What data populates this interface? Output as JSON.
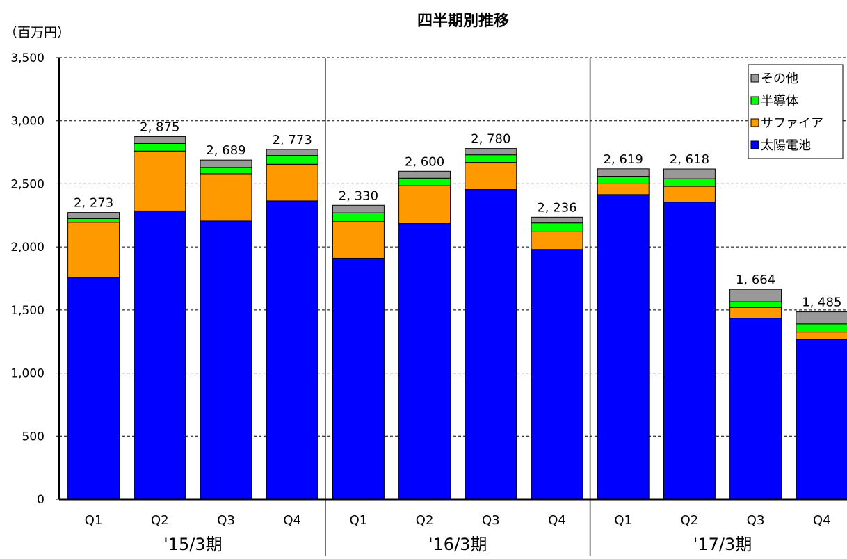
{
  "chart_data": {
    "type": "bar",
    "stacked": true,
    "title": "四半期別推移",
    "unit_label": "（百万円）",
    "ylim": [
      0,
      3500
    ],
    "yticks": [
      0,
      500,
      1000,
      1500,
      2000,
      2500,
      3000,
      3500
    ],
    "ytick_labels": [
      "0",
      "500",
      "1,000",
      "1,500",
      "2,000",
      "2,500",
      "3,000",
      "3,500"
    ],
    "grid": true,
    "legend_position": "top-right",
    "groups": [
      "'15/3期",
      "'16/3期",
      "'17/3期"
    ],
    "categories": [
      "Q1",
      "Q2",
      "Q3",
      "Q4",
      "Q1",
      "Q2",
      "Q3",
      "Q4",
      "Q1",
      "Q2",
      "Q3",
      "Q4"
    ],
    "series": [
      {
        "name": "太陽電池",
        "color": "#0000ff",
        "values": [
          1755,
          2285,
          2205,
          2365,
          1910,
          2185,
          2455,
          1980,
          2415,
          2355,
          1435,
          1265
        ]
      },
      {
        "name": "サファイア",
        "color": "#ff9900",
        "values": [
          440,
          475,
          375,
          290,
          290,
          300,
          215,
          140,
          85,
          125,
          85,
          60
        ]
      },
      {
        "name": "半導体",
        "color": "#00ff00",
        "values": [
          30,
          60,
          50,
          70,
          70,
          60,
          60,
          70,
          60,
          60,
          45,
          65
        ]
      },
      {
        "name": "その他",
        "color": "#999999",
        "values": [
          48,
          55,
          59,
          48,
          60,
          55,
          50,
          46,
          59,
          78,
          99,
          95
        ]
      }
    ],
    "totals": [
      2273,
      2875,
      2689,
      2773,
      2330,
      2600,
      2780,
      2236,
      2619,
      2618,
      1664,
      1485
    ],
    "total_labels": [
      "2, 273",
      "2, 875",
      "2, 689",
      "2, 773",
      "2, 330",
      "2, 600",
      "2, 780",
      "2, 236",
      "2, 619",
      "2, 618",
      "1, 664",
      "1, 485"
    ]
  }
}
